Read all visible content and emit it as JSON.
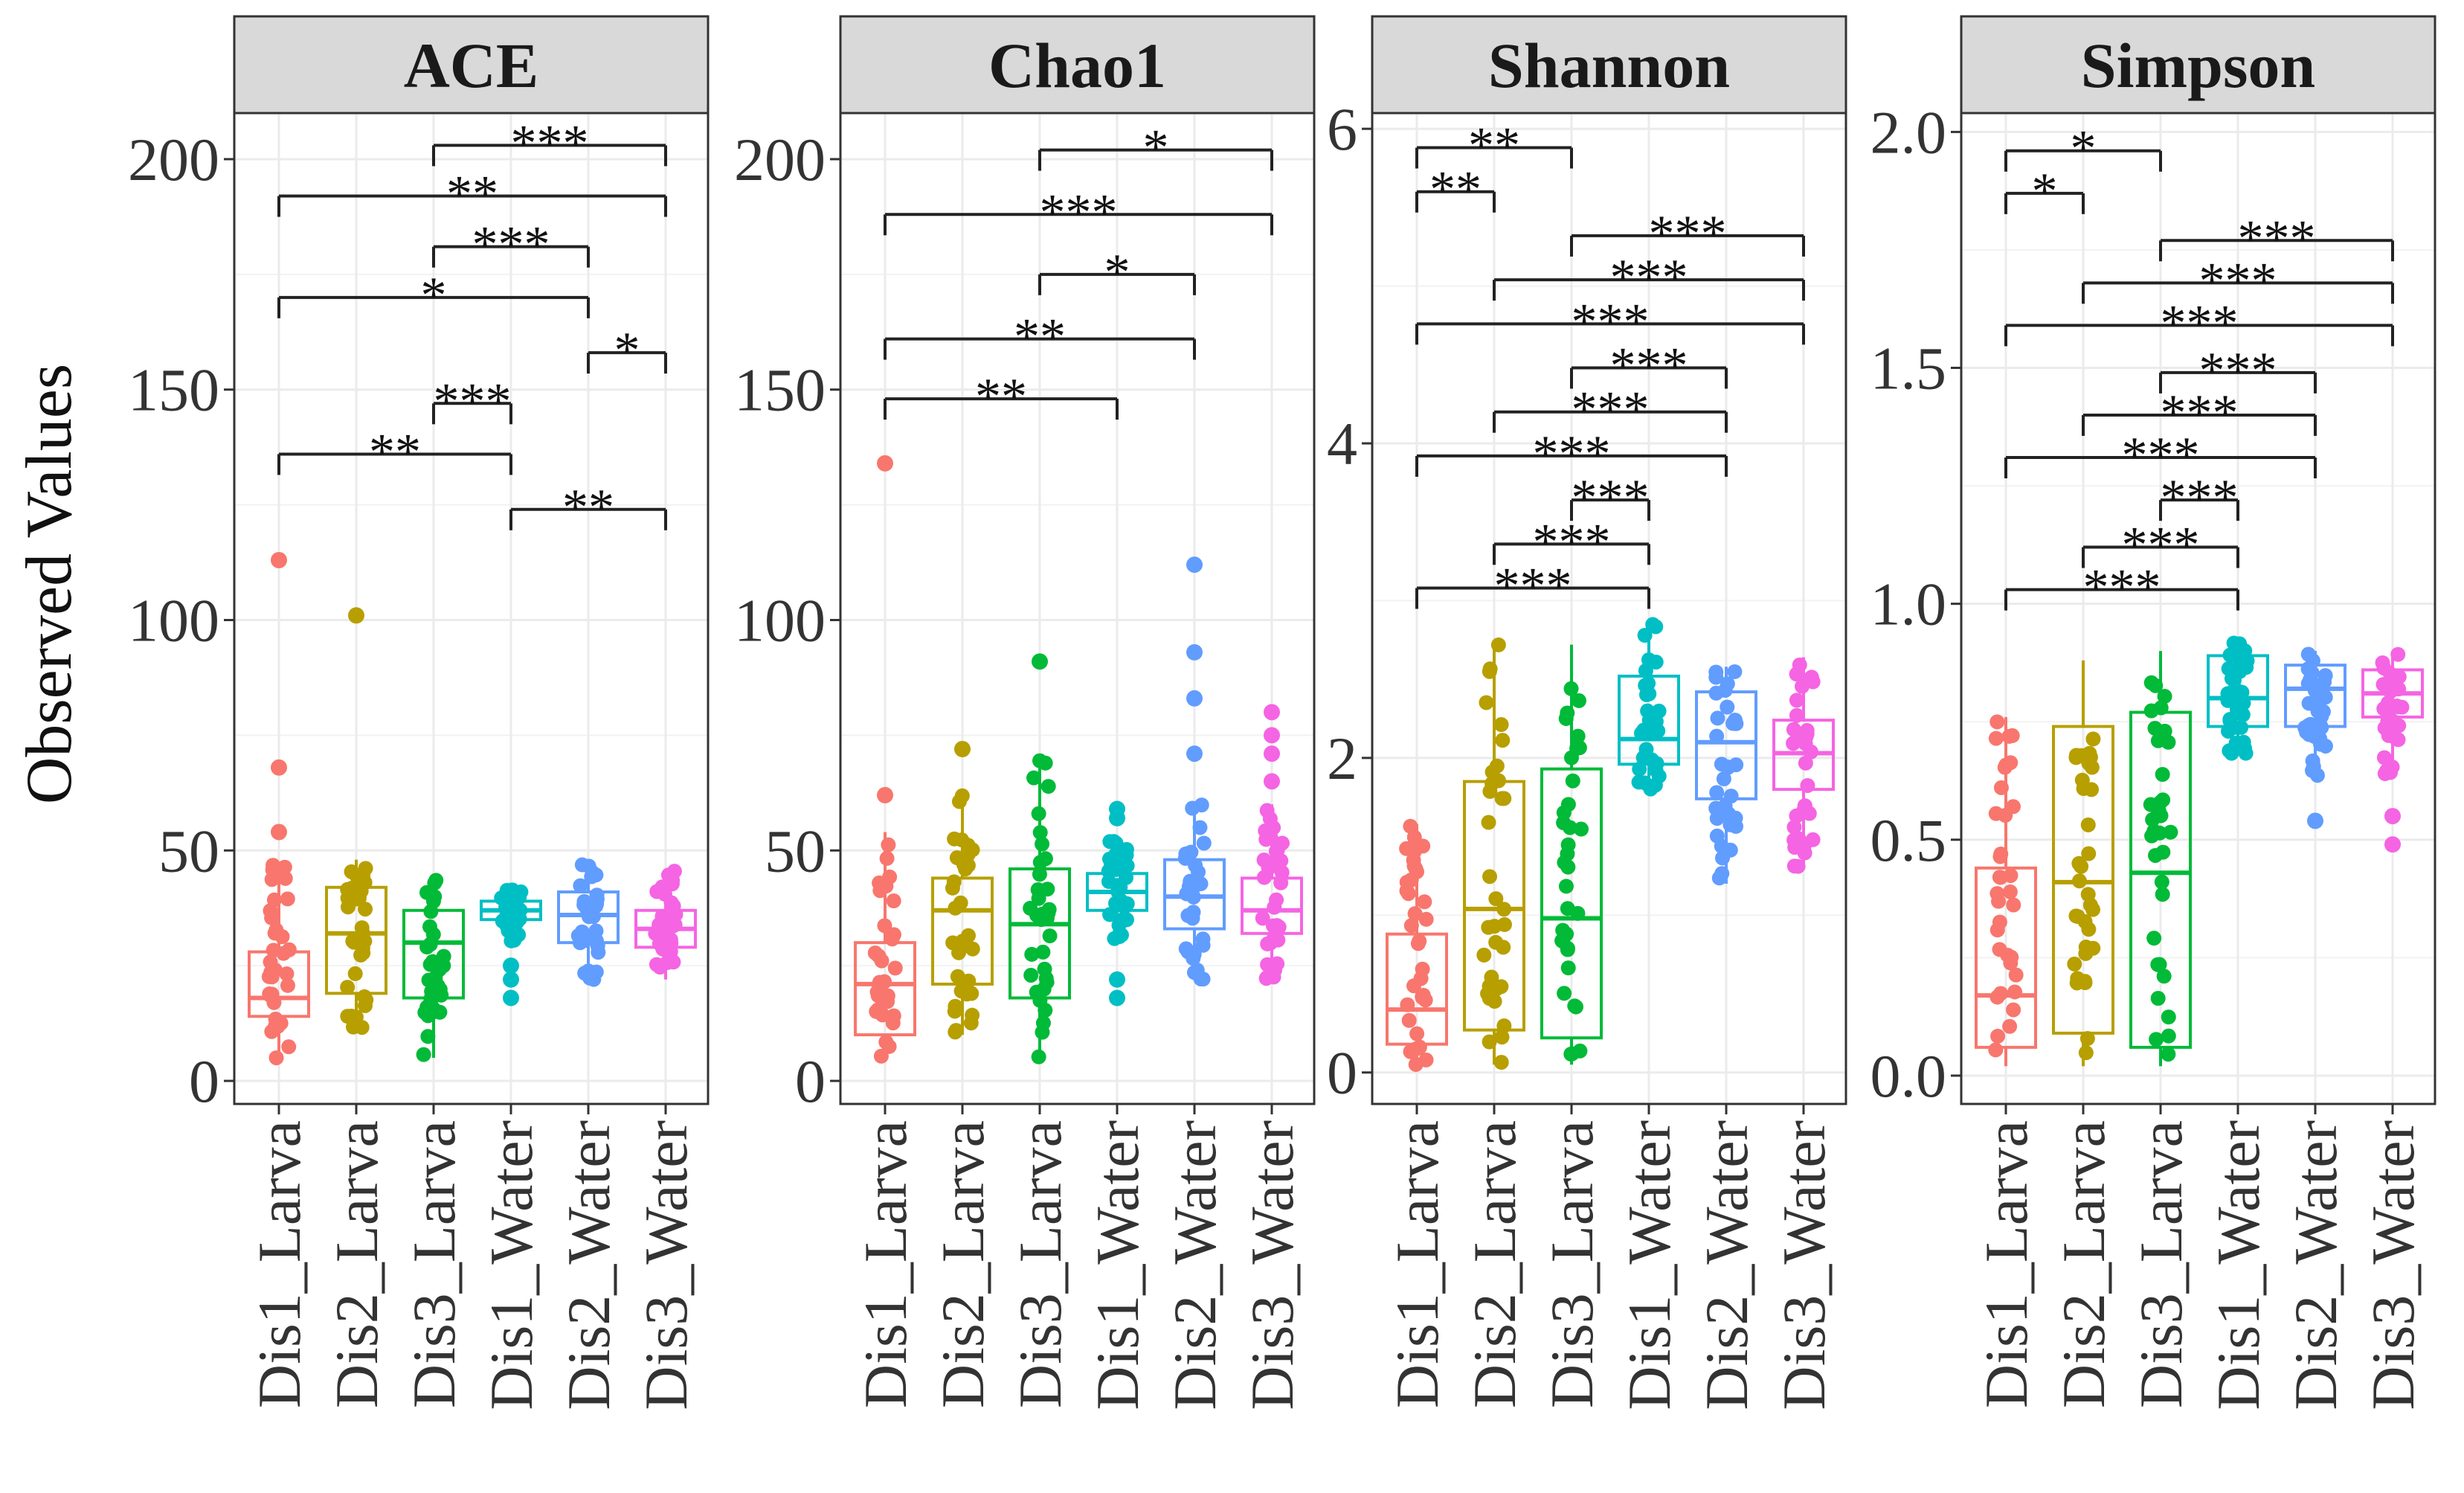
{
  "chart_data": {
    "type": "boxplot",
    "ylabel": "Observed Values",
    "categories": [
      "Dis1_Larva",
      "Dis2_Larva",
      "Dis3_Larva",
      "Dis1_Water",
      "Dis2_Water",
      "Dis3_Water"
    ],
    "colors": [
      "#F8766D",
      "#B79F00",
      "#00BA38",
      "#00BFC4",
      "#619CFF",
      "#F564E3"
    ],
    "panels": [
      {
        "title": "ACE",
        "ylim": [
          -5,
          210
        ],
        "yticks": [
          0,
          50,
          100,
          150,
          200
        ],
        "ytick_labels": [
          "0",
          "50",
          "100",
          "150",
          "200"
        ],
        "boxes": [
          {
            "group": "Dis1_Larva",
            "min": 5,
            "q1": 14,
            "median": 18,
            "q3": 28,
            "max": 47,
            "outliers": [
              54,
              68,
              113
            ]
          },
          {
            "group": "Dis2_Larva",
            "min": 11,
            "q1": 19,
            "median": 32,
            "q3": 42,
            "max": 48,
            "outliers": [
              101
            ]
          },
          {
            "group": "Dis3_Larva",
            "min": 5,
            "q1": 18,
            "median": 30,
            "q3": 37,
            "max": 44,
            "outliers": []
          },
          {
            "group": "Dis1_Water",
            "min": 30,
            "q1": 35,
            "median": 37,
            "q3": 39,
            "max": 43,
            "outliers": [
              18,
              22,
              25
            ]
          },
          {
            "group": "Dis2_Water",
            "min": 22,
            "q1": 30,
            "median": 36,
            "q3": 41,
            "max": 47,
            "outliers": []
          },
          {
            "group": "Dis3_Water",
            "min": 22,
            "q1": 29,
            "median": 33,
            "q3": 37,
            "max": 46,
            "outliers": []
          }
        ],
        "comparisons": [
          {
            "g1": 3,
            "g2": 6,
            "y": 203,
            "label": "***"
          },
          {
            "g1": 1,
            "g2": 6,
            "y": 192,
            "label": "**"
          },
          {
            "g1": 3,
            "g2": 5,
            "y": 181,
            "label": "***"
          },
          {
            "g1": 1,
            "g2": 5,
            "y": 170,
            "label": "*"
          },
          {
            "g1": 5,
            "g2": 6,
            "y": 158,
            "label": "*"
          },
          {
            "g1": 3,
            "g2": 4,
            "y": 147,
            "label": "***"
          },
          {
            "g1": 1,
            "g2": 4,
            "y": 136,
            "label": "**"
          },
          {
            "g1": 4,
            "g2": 6,
            "y": 124,
            "label": "**"
          }
        ]
      },
      {
        "title": "Chao1",
        "ylim": [
          -5,
          210
        ],
        "yticks": [
          0,
          50,
          100,
          150,
          200
        ],
        "ytick_labels": [
          "0",
          "50",
          "100",
          "150",
          "200"
        ],
        "boxes": [
          {
            "group": "Dis1_Larva",
            "min": 5,
            "q1": 10,
            "median": 21,
            "q3": 30,
            "max": 54,
            "outliers": [
              62,
              134
            ]
          },
          {
            "group": "Dis2_Larva",
            "min": 10,
            "q1": 21,
            "median": 37,
            "q3": 44,
            "max": 62,
            "outliers": [
              72
            ]
          },
          {
            "group": "Dis3_Larva",
            "min": 5,
            "q1": 18,
            "median": 34,
            "q3": 46,
            "max": 70,
            "outliers": [
              91
            ]
          },
          {
            "group": "Dis1_Water",
            "min": 30,
            "q1": 37,
            "median": 41,
            "q3": 45,
            "max": 52,
            "outliers": [
              18,
              22,
              57,
              59
            ]
          },
          {
            "group": "Dis2_Water",
            "min": 22,
            "q1": 33,
            "median": 40,
            "q3": 48,
            "max": 60,
            "outliers": [
              71,
              83,
              93,
              112
            ]
          },
          {
            "group": "Dis3_Water",
            "min": 22,
            "q1": 32,
            "median": 37,
            "q3": 44,
            "max": 60,
            "outliers": [
              65,
              71,
              75,
              80
            ]
          }
        ],
        "comparisons": [
          {
            "g1": 3,
            "g2": 6,
            "y": 202,
            "label": "*"
          },
          {
            "g1": 1,
            "g2": 6,
            "y": 188,
            "label": "***"
          },
          {
            "g1": 3,
            "g2": 5,
            "y": 175,
            "label": "*"
          },
          {
            "g1": 1,
            "g2": 5,
            "y": 161,
            "label": "**"
          },
          {
            "g1": 1,
            "g2": 4,
            "y": 148,
            "label": "**"
          }
        ]
      },
      {
        "title": "Shannon",
        "ylim": [
          -0.2,
          6.1
        ],
        "yticks": [
          0,
          2,
          4,
          6
        ],
        "ytick_labels": [
          "0",
          "2",
          "4",
          "6"
        ],
        "boxes": [
          {
            "group": "Dis1_Larva",
            "min": 0.05,
            "q1": 0.18,
            "median": 0.4,
            "q3": 0.88,
            "max": 1.58,
            "outliers": []
          },
          {
            "group": "Dis2_Larva",
            "min": 0.05,
            "q1": 0.27,
            "median": 1.04,
            "q3": 1.85,
            "max": 2.72,
            "outliers": []
          },
          {
            "group": "Dis3_Larva",
            "min": 0.05,
            "q1": 0.22,
            "median": 0.98,
            "q3": 1.93,
            "max": 2.72,
            "outliers": []
          },
          {
            "group": "Dis1_Water",
            "min": 1.78,
            "q1": 1.96,
            "median": 2.12,
            "q3": 2.52,
            "max": 2.86,
            "outliers": []
          },
          {
            "group": "Dis2_Water",
            "min": 1.2,
            "q1": 1.74,
            "median": 2.1,
            "q3": 2.42,
            "max": 2.58,
            "outliers": []
          },
          {
            "group": "Dis3_Water",
            "min": 1.3,
            "q1": 1.8,
            "median": 2.03,
            "q3": 2.24,
            "max": 2.64,
            "outliers": []
          }
        ],
        "comparisons": [
          {
            "g1": 1,
            "g2": 3,
            "y": 5.88,
            "label": "**"
          },
          {
            "g1": 1,
            "g2": 2,
            "y": 5.6,
            "label": "**"
          },
          {
            "g1": 3,
            "g2": 6,
            "y": 5.32,
            "label": "***"
          },
          {
            "g1": 2,
            "g2": 6,
            "y": 5.04,
            "label": "***"
          },
          {
            "g1": 1,
            "g2": 6,
            "y": 4.76,
            "label": "***"
          },
          {
            "g1": 3,
            "g2": 5,
            "y": 4.48,
            "label": "***"
          },
          {
            "g1": 2,
            "g2": 5,
            "y": 4.2,
            "label": "***"
          },
          {
            "g1": 1,
            "g2": 5,
            "y": 3.92,
            "label": "***"
          },
          {
            "g1": 3,
            "g2": 4,
            "y": 3.64,
            "label": "***"
          },
          {
            "g1": 2,
            "g2": 4,
            "y": 3.36,
            "label": "***"
          },
          {
            "g1": 1,
            "g2": 4,
            "y": 3.08,
            "label": "***"
          }
        ]
      },
      {
        "title": "Simpson",
        "ylim": [
          -0.06,
          2.04
        ],
        "yticks": [
          0,
          0.5,
          1,
          1.5,
          2
        ],
        "ytick_labels": [
          "0.0",
          "0.5",
          "1.0",
          "1.5",
          "2.0"
        ],
        "boxes": [
          {
            "group": "Dis1_Larva",
            "min": 0.02,
            "q1": 0.06,
            "median": 0.17,
            "q3": 0.44,
            "max": 0.76,
            "outliers": []
          },
          {
            "group": "Dis2_Larva",
            "min": 0.02,
            "q1": 0.09,
            "median": 0.41,
            "q3": 0.74,
            "max": 0.88,
            "outliers": []
          },
          {
            "group": "Dis3_Larva",
            "min": 0.02,
            "q1": 0.06,
            "median": 0.43,
            "q3": 0.77,
            "max": 0.9,
            "outliers": []
          },
          {
            "group": "Dis1_Water",
            "min": 0.68,
            "q1": 0.74,
            "median": 0.8,
            "q3": 0.89,
            "max": 0.93,
            "outliers": []
          },
          {
            "group": "Dis2_Water",
            "min": 0.63,
            "q1": 0.74,
            "median": 0.82,
            "q3": 0.87,
            "max": 0.9,
            "outliers": [
              0.54
            ]
          },
          {
            "group": "Dis3_Water",
            "min": 0.64,
            "q1": 0.76,
            "median": 0.81,
            "q3": 0.86,
            "max": 0.9,
            "outliers": [
              0.49,
              0.55
            ]
          }
        ],
        "comparisons": [
          {
            "g1": 1,
            "g2": 3,
            "y": 1.96,
            "label": "*"
          },
          {
            "g1": 1,
            "g2": 2,
            "y": 1.87,
            "label": "*"
          },
          {
            "g1": 3,
            "g2": 6,
            "y": 1.77,
            "label": "***"
          },
          {
            "g1": 2,
            "g2": 6,
            "y": 1.68,
            "label": "***"
          },
          {
            "g1": 1,
            "g2": 6,
            "y": 1.59,
            "label": "***"
          },
          {
            "g1": 3,
            "g2": 5,
            "y": 1.49,
            "label": "***"
          },
          {
            "g1": 2,
            "g2": 5,
            "y": 1.4,
            "label": "***"
          },
          {
            "g1": 1,
            "g2": 5,
            "y": 1.31,
            "label": "***"
          },
          {
            "g1": 3,
            "g2": 4,
            "y": 1.22,
            "label": "***"
          },
          {
            "g1": 2,
            "g2": 4,
            "y": 1.12,
            "label": "***"
          },
          {
            "g1": 1,
            "g2": 4,
            "y": 1.03,
            "label": "***"
          }
        ]
      }
    ]
  }
}
